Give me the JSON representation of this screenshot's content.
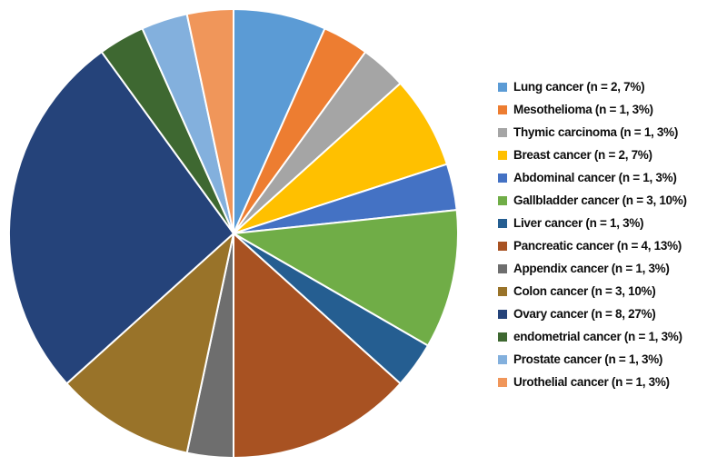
{
  "chart_data": {
    "type": "pie",
    "title": "",
    "legend_position": "right",
    "start_angle_deg": 0,
    "rotation": "clockwise-from-top",
    "total_n": 30,
    "slice_border_color": "#FFFFFF",
    "background_color": "#FFFFFF",
    "legend_text_color": "#0d0d0d",
    "slices": [
      {
        "label": "Lung cancer",
        "n": 2,
        "pct": "7%",
        "legend_label": "Lung cancer (n = 2, 7%)",
        "color": "#5B9BD5"
      },
      {
        "label": "Mesothelioma",
        "n": 1,
        "pct": "3%",
        "legend_label": "Mesothelioma (n = 1, 3%)",
        "color": "#ED7D31"
      },
      {
        "label": "Thymic carcinoma",
        "n": 1,
        "pct": "3%",
        "legend_label": "Thymic carcinoma (n = 1, 3%)",
        "color": "#A5A5A5"
      },
      {
        "label": "Breast cancer",
        "n": 2,
        "pct": "7%",
        "legend_label": "Breast cancer (n = 2, 7%)",
        "color": "#FFC000"
      },
      {
        "label": "Abdominal cancer",
        "n": 1,
        "pct": "3%",
        "legend_label": "Abdominal cancer (n = 1, 3%)",
        "color": "#4472C4"
      },
      {
        "label": "Gallbladder cancer",
        "n": 3,
        "pct": "10%",
        "legend_label": "Gallbladder cancer (n = 3, 10%)",
        "color": "#70AD47"
      },
      {
        "label": "Liver cancer",
        "n": 1,
        "pct": "3%",
        "legend_label": "Liver cancer (n = 1, 3%)",
        "color": "#255E91"
      },
      {
        "label": "Pancreatic cancer",
        "n": 4,
        "pct": "13%",
        "legend_label": "Pancreatic cancer (n = 4, 13%)",
        "color": "#A85222"
      },
      {
        "label": "Appendix cancer",
        "n": 1,
        "pct": "3%",
        "legend_label": "Appendix cancer (n = 1, 3%)",
        "color": "#6E6E6E"
      },
      {
        "label": "Colon cancer",
        "n": 3,
        "pct": "10%",
        "legend_label": "Colon cancer (n = 3, 10%)",
        "color": "#997329"
      },
      {
        "label": "Ovary cancer",
        "n": 8,
        "pct": "27%",
        "legend_label": "Ovary cancer (n = 8, 27%)",
        "color": "#25437A"
      },
      {
        "label": "endometrial cancer",
        "n": 1,
        "pct": "3%",
        "legend_label": "endometrial cancer (n = 1, 3%)",
        "color": "#3E6831"
      },
      {
        "label": "Prostate cancer",
        "n": 1,
        "pct": "3%",
        "legend_label": "Prostate cancer (n = 1, 3%)",
        "color": "#83B0DD"
      },
      {
        "label": "Urothelial cancer",
        "n": 1,
        "pct": "3%",
        "legend_label": "Urothelial cancer (n = 1, 3%)",
        "color": "#F0965A"
      }
    ]
  }
}
